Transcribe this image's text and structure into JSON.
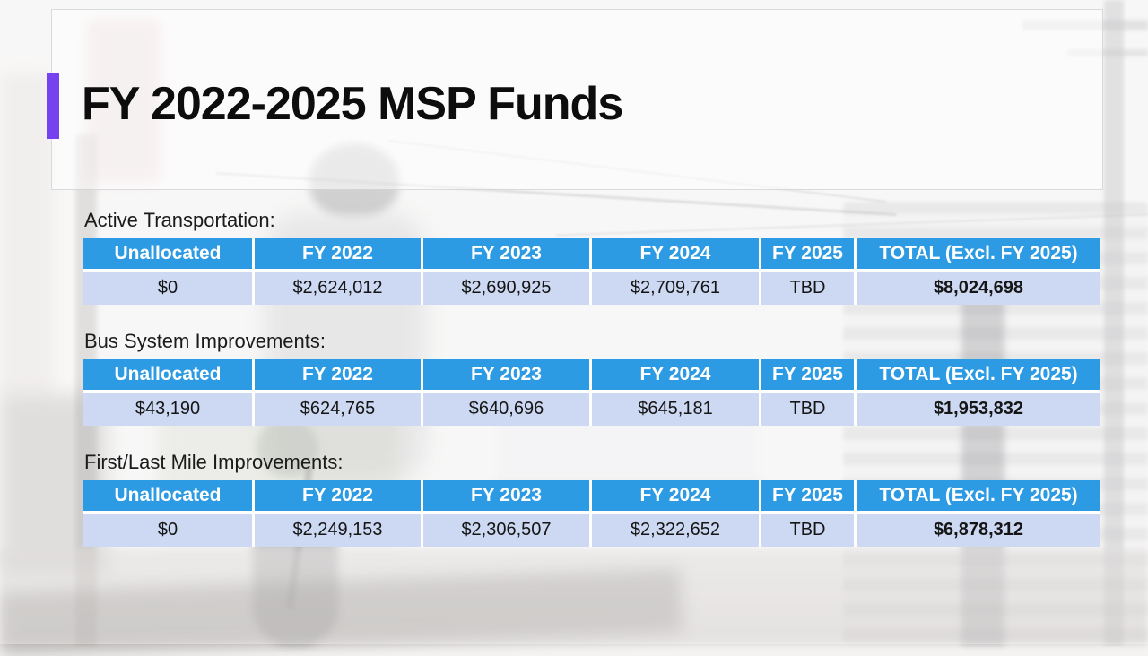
{
  "title": "FY 2022-2025 MSP Funds",
  "headers": [
    "Unallocated",
    "FY 2022",
    "FY 2023",
    "FY 2024",
    "FY 2025",
    "TOTAL (Excl. FY 2025)"
  ],
  "sections": [
    {
      "label": "Active Transportation:",
      "values": [
        "$0",
        "$2,624,012",
        "$2,690,925",
        "$2,709,761",
        "TBD",
        "$8,024,698"
      ]
    },
    {
      "label": "Bus System Improvements:",
      "values": [
        "$43,190",
        "$624,765",
        "$640,696",
        "$645,181",
        "TBD",
        "$1,953,832"
      ]
    },
    {
      "label": "First/Last Mile Improvements:",
      "values": [
        "$0",
        "$2,249,153",
        "$2,306,507",
        "$2,322,652",
        "TBD",
        "$6,878,312"
      ]
    }
  ],
  "colors": {
    "accent_bar": "#7642F0",
    "title_text": "#0D0D0D",
    "table_header_bg": "#2D9BE3",
    "table_header_text": "#FFFFFF",
    "table_row_bg": "#CDD9F2"
  }
}
